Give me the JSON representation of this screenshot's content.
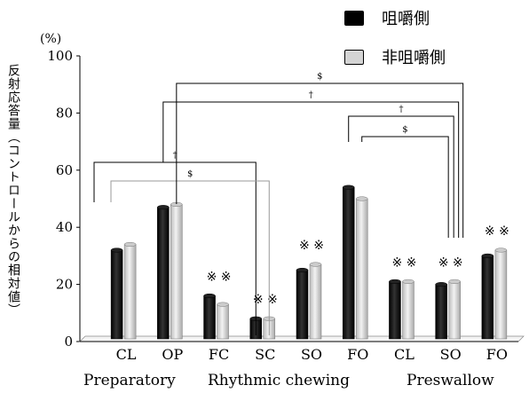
{
  "chart_data": {
    "type": "bar",
    "legend": [
      {
        "name": "咀嚼側",
        "color": "#000000"
      },
      {
        "name": "非咀嚼側",
        "color": "#d4d4d4"
      }
    ],
    "ylabel": "反射応答量（コントロールからの相対値）",
    "yunit": "(%)",
    "ylim": [
      0,
      100
    ],
    "yticks": [
      0,
      20,
      40,
      60,
      80,
      100
    ],
    "categories": [
      "CL",
      "OP",
      "FC",
      "SC",
      "SO",
      "FO",
      "CL",
      "SO",
      "FO"
    ],
    "groups": [
      {
        "label": "Preparatory",
        "categories": [
          0,
          1
        ]
      },
      {
        "label": "Rhythmic chewing",
        "categories": [
          2,
          3,
          4,
          5
        ]
      },
      {
        "label": "Preswallow",
        "categories": [
          6,
          7,
          8
        ]
      }
    ],
    "series": [
      {
        "name": "咀嚼側",
        "values": [
          32,
          47,
          16,
          8,
          25,
          54,
          21,
          20,
          30
        ]
      },
      {
        "name": "非咀嚼側",
        "values": [
          34,
          48,
          13,
          8,
          27,
          50,
          21,
          21,
          32
        ]
      }
    ],
    "markers": [
      "",
      "",
      "※ ※",
      "※ ※",
      "※ ※",
      "",
      "※ ※",
      "※ ※",
      "※ ※"
    ],
    "significance": [
      {
        "label": "†",
        "from": 0,
        "to": 3,
        "series": "咀嚼側"
      },
      {
        "label": "$",
        "from": 0,
        "to": 3,
        "series": "非咀嚼側"
      },
      {
        "label": "$",
        "from": 1,
        "to": 7,
        "series": "咀嚼側"
      },
      {
        "label": "†",
        "from": 1,
        "to": 7,
        "series": "非咀嚼側"
      },
      {
        "label": "†",
        "from": 5,
        "to": 7,
        "series": "咀嚼側"
      },
      {
        "label": "$",
        "from": 5,
        "to": 7,
        "series": "非咀嚼側"
      }
    ]
  }
}
